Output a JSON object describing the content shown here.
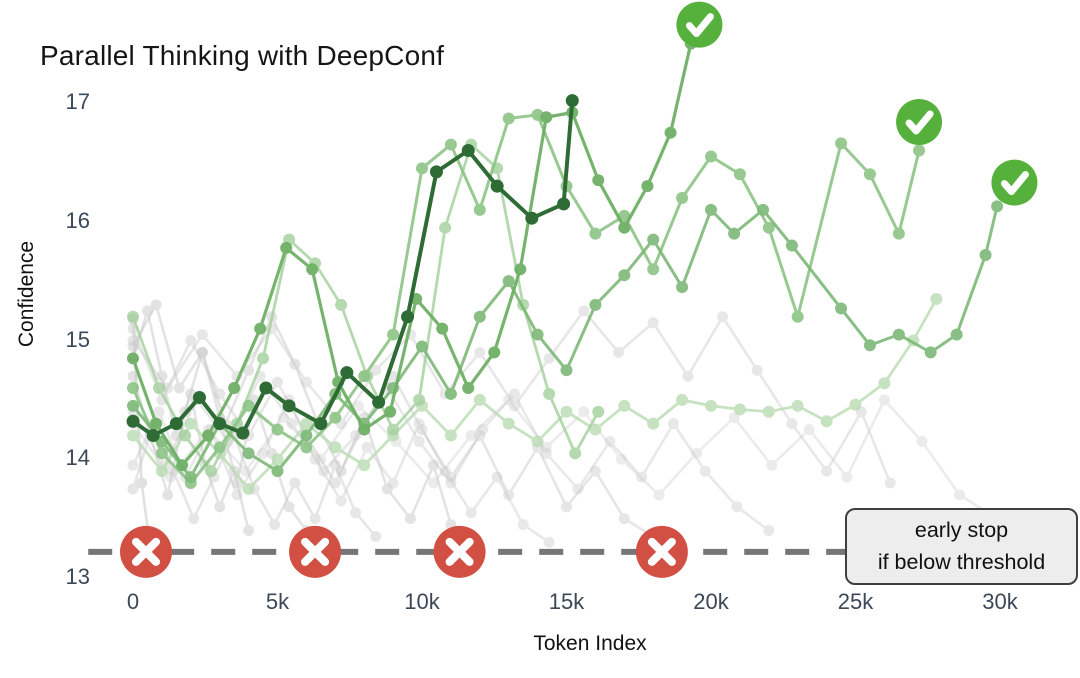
{
  "title": "Parallel Thinking with DeepConf",
  "x_axis": {
    "title": "Token Index",
    "ticks": [
      {
        "label": "0",
        "k": 0
      },
      {
        "label": "5k",
        "k": 5
      },
      {
        "label": "10k",
        "k": 10
      },
      {
        "label": "15k",
        "k": 15
      },
      {
        "label": "20k",
        "k": 20
      },
      {
        "label": "25k",
        "k": 25
      },
      {
        "label": "30k",
        "k": 30
      }
    ]
  },
  "y_axis": {
    "title": "Confidence",
    "ticks": [
      {
        "label": "17",
        "conf": 17
      },
      {
        "label": "16",
        "conf": 16
      },
      {
        "label": "15",
        "conf": 15
      },
      {
        "label": "14",
        "conf": 14
      },
      {
        "label": "13",
        "conf": 13
      }
    ]
  },
  "annotation": {
    "line1": "early stop",
    "line2": "if below threshold"
  },
  "colors": {
    "background": "#ffffff",
    "check_green": "#55b13b",
    "stop_red": "#d25043",
    "threshold_gray": "#767676",
    "tick_text": "#3c4858",
    "dark_trace_green": "#2e6b35",
    "stopped_trace_gray": "#c8c8c8"
  },
  "chart_data": {
    "type": "line",
    "title": "Parallel Thinking with DeepConf",
    "xlabel": "Token Index",
    "ylabel": "Confidence",
    "x_unit": "tokens (thousands)",
    "xlim_k": [
      0,
      31.7
    ],
    "ylim": [
      12.8,
      17.2
    ],
    "grid": false,
    "legend": "none",
    "threshold": {
      "conf": 13.22,
      "meaning": "early stop if below threshold",
      "style": "dashed",
      "color": "#767676",
      "x_span_k": [
        -1.55,
        31.7
      ]
    },
    "early_stop_markers": [
      {
        "k": 0.45,
        "conf": 13.22
      },
      {
        "k": 6.3,
        "conf": 13.22
      },
      {
        "k": 11.3,
        "conf": 13.22
      },
      {
        "k": 18.3,
        "conf": 13.22
      }
    ],
    "success_markers": [
      {
        "k": 19.6,
        "conf": 17.66
      },
      {
        "k": 27.2,
        "conf": 16.84
      },
      {
        "k": 30.5,
        "conf": 16.33
      }
    ],
    "series": [
      {
        "name": "stopped-1",
        "status": "stopped",
        "color": "#c8c8c8",
        "opacity": 0.55,
        "width": 2.6,
        "dot": 5.5,
        "k": [
          0,
          0.3,
          0.6
        ],
        "conf": [
          15.18,
          13.8,
          13.25
        ]
      },
      {
        "name": "stopped-2",
        "status": "stopped",
        "color": "#c8c8c8",
        "opacity": 0.5,
        "width": 2.6,
        "dot": 5.5,
        "k": [
          0,
          0.6,
          1.2,
          1.8,
          2.4,
          3.0,
          3.6,
          4.2,
          4.8,
          5.4,
          6.0,
          6.5
        ],
        "conf": [
          14.7,
          14.2,
          13.7,
          14.4,
          14.9,
          14.35,
          13.8,
          14.5,
          14.05,
          13.6,
          13.4,
          13.25
        ]
      },
      {
        "name": "stopped-3",
        "status": "stopped",
        "color": "#c8c8c8",
        "opacity": 0.5,
        "width": 2.6,
        "dot": 5.5,
        "k": [
          0,
          0.8,
          1.6,
          2.4,
          3.2,
          4.0,
          4.8,
          5.6,
          6.4,
          7.2,
          8.0,
          8.8,
          9.6,
          10.4,
          11.0,
          11.3
        ],
        "conf": [
          14.95,
          15.3,
          14.6,
          14.9,
          14.3,
          14.75,
          15.2,
          14.8,
          14.3,
          13.9,
          14.35,
          13.75,
          13.5,
          13.95,
          13.45,
          13.25
        ]
      },
      {
        "name": "stopped-4",
        "status": "stopped",
        "color": "#c8c8c8",
        "opacity": 0.45,
        "width": 2.6,
        "dot": 5.5,
        "k": [
          0,
          1,
          2,
          3,
          4,
          5,
          6,
          7,
          8,
          9,
          10,
          11,
          12,
          13,
          14,
          15,
          16,
          17,
          18,
          18.3
        ],
        "conf": [
          15.1,
          14.5,
          15.0,
          14.55,
          14.2,
          14.65,
          14.2,
          13.8,
          14.3,
          14.7,
          14.25,
          13.85,
          14.2,
          13.7,
          14.1,
          13.6,
          13.9,
          13.5,
          13.35,
          13.22
        ]
      },
      {
        "name": "stopped-5",
        "status": "stopped",
        "color": "#c8c8c8",
        "opacity": 0.4,
        "width": 2.6,
        "dot": 5.5,
        "k": [
          0,
          0.9,
          1.8,
          2.7,
          3.6,
          4.5,
          5.4,
          6.3,
          7.2,
          8.1,
          9.0,
          9.9,
          10.8,
          11.7,
          12.6,
          13.5,
          14.4
        ],
        "conf": [
          13.95,
          14.4,
          13.85,
          14.25,
          13.7,
          14.05,
          14.5,
          14.0,
          13.65,
          14.1,
          13.8,
          14.3,
          13.9,
          13.55,
          13.85,
          13.45,
          13.3
        ]
      },
      {
        "name": "stopped-6",
        "status": "stopped",
        "color": "#c8c8c8",
        "opacity": 0.4,
        "width": 2.6,
        "dot": 5.5,
        "k": [
          0,
          1.1,
          2.2,
          3.3,
          4.4,
          5.5,
          6.6,
          7.7,
          8.8,
          9.9,
          11,
          12.1,
          13.2,
          14.3,
          15.4,
          16.5,
          17.6,
          18.7,
          19.8,
          20.9,
          22
        ],
        "conf": [
          14.4,
          13.95,
          14.5,
          14.15,
          14.7,
          14.3,
          13.9,
          14.2,
          14.6,
          14.15,
          13.8,
          14.25,
          14.55,
          14.05,
          13.75,
          14.15,
          13.85,
          14.3,
          13.9,
          13.6,
          13.4
        ]
      },
      {
        "name": "stopped-7",
        "status": "stopped",
        "color": "#c8c8c8",
        "opacity": 0.42,
        "width": 2.6,
        "dot": 5.5,
        "k": [
          0,
          1.2,
          2.4,
          3.6,
          4.8,
          6,
          7.2,
          8.4,
          9.6,
          10.8,
          12,
          13.2,
          14.4,
          15.6,
          16.8,
          18,
          19.2,
          20.4,
          21.6,
          22.8,
          24,
          25.2,
          26.2
        ],
        "conf": [
          15.0,
          14.6,
          15.05,
          14.7,
          15.1,
          14.65,
          14.3,
          14.75,
          15.05,
          14.55,
          14.9,
          14.45,
          14.85,
          15.25,
          14.9,
          15.15,
          14.7,
          15.2,
          14.75,
          14.3,
          13.9,
          14.4,
          13.8
        ]
      },
      {
        "name": "stopped-8",
        "status": "stopped",
        "color": "#c8c8c8",
        "opacity": 0.35,
        "width": 2.6,
        "dot": 5.5,
        "k": [
          0,
          1.3,
          2.6,
          3.9,
          5.2,
          6.5,
          7.8,
          9.1,
          10.4,
          11.7,
          13,
          14.3,
          15.6,
          16.9,
          18.2,
          19.5,
          20.8,
          22.1,
          23.4,
          24.7,
          26,
          27.3,
          28.6,
          29.9,
          31
        ],
        "conf": [
          14.3,
          13.85,
          14.25,
          13.9,
          14.35,
          14.0,
          14.45,
          14.15,
          13.8,
          14.2,
          14.5,
          14.1,
          14.4,
          14.0,
          13.7,
          14.05,
          14.35,
          13.95,
          14.25,
          13.85,
          14.5,
          14.15,
          13.7,
          13.5,
          13.35
        ]
      },
      {
        "name": "stopped-9",
        "status": "stopped",
        "color": "#c8c8c8",
        "opacity": 0.5,
        "width": 2.6,
        "dot": 5.5,
        "k": [
          0,
          0.5,
          1.0,
          1.5,
          2.0,
          2.5,
          3.0,
          3.5,
          4.0
        ],
        "conf": [
          14.85,
          15.25,
          14.7,
          14.2,
          14.55,
          13.95,
          13.6,
          13.9,
          13.4
        ]
      },
      {
        "name": "stopped-10",
        "status": "stopped",
        "color": "#c8c8c8",
        "opacity": 0.45,
        "width": 2.6,
        "dot": 5.5,
        "k": [
          0,
          0.7,
          1.4,
          2.1,
          2.8,
          3.5,
          4.2,
          4.9,
          5.6,
          6.3,
          7.0,
          7.7,
          8.4
        ],
        "conf": [
          13.75,
          14.3,
          13.9,
          13.5,
          13.85,
          14.2,
          13.75,
          13.45,
          13.8,
          13.5,
          13.95,
          13.55,
          13.35
        ]
      },
      {
        "name": "kept-pale",
        "status": "kept",
        "color": "#b9dcb2",
        "opacity": 0.8,
        "width": 2.8,
        "dot": 6,
        "k": [
          0,
          1,
          2,
          3,
          4,
          5,
          6,
          7,
          8,
          9,
          10,
          11,
          12,
          13,
          14,
          15,
          16,
          17,
          18,
          19,
          20,
          21,
          22,
          23,
          24,
          25,
          26,
          27,
          27.8
        ],
        "conf": [
          14.2,
          13.9,
          14.3,
          14.05,
          13.75,
          14.0,
          14.3,
          14.1,
          13.95,
          14.2,
          14.45,
          14.2,
          14.5,
          14.3,
          14.15,
          14.4,
          14.25,
          14.45,
          14.3,
          14.5,
          14.45,
          14.42,
          14.4,
          14.45,
          14.32,
          14.46,
          14.64,
          15.0,
          15.35
        ]
      },
      {
        "name": "kept-light",
        "status": "kept",
        "color": "#a3d09b",
        "opacity": 0.8,
        "width": 2.8,
        "dot": 6,
        "k": [
          0,
          0.9,
          1.8,
          2.7,
          3.6,
          4.5,
          5.4,
          6.3,
          7.2,
          8.1,
          9.0,
          9.9,
          10.8,
          11.7,
          12.6,
          13.5,
          14.4,
          15.3,
          16.1
        ],
        "conf": [
          15.2,
          14.6,
          14.2,
          13.9,
          14.3,
          14.85,
          15.85,
          15.65,
          15.3,
          14.7,
          14.25,
          14.5,
          15.95,
          16.65,
          16.45,
          15.3,
          14.55,
          14.05,
          14.4
        ]
      },
      {
        "name": "kept-b",
        "status": "kept",
        "color": "#8cc486",
        "opacity": 0.9,
        "width": 3,
        "dot": 6,
        "k": [
          0,
          1,
          2,
          3,
          4,
          5,
          6,
          7,
          8,
          9,
          10,
          11,
          12,
          13,
          14,
          15,
          16,
          17,
          18,
          19,
          20,
          21,
          22,
          23,
          24.5,
          25.5,
          26.5,
          27.2
        ],
        "conf": [
          14.6,
          14.05,
          13.8,
          14.1,
          14.45,
          14.25,
          14.1,
          14.35,
          14.7,
          15.05,
          16.45,
          16.65,
          16.1,
          16.87,
          16.9,
          16.3,
          15.9,
          16.05,
          15.6,
          16.2,
          16.55,
          16.4,
          15.95,
          15.2,
          16.66,
          16.4,
          15.9,
          16.6
        ]
      },
      {
        "name": "kept-c",
        "status": "kept",
        "color": "#7db977",
        "opacity": 0.9,
        "width": 3,
        "dot": 6,
        "k": [
          0,
          1,
          2,
          3,
          4,
          5,
          6,
          7,
          8,
          9,
          10,
          11,
          12,
          13,
          14,
          15,
          16,
          17,
          18,
          19,
          20,
          20.8,
          21.8,
          22.8,
          24.5,
          25.5,
          26.5,
          27.6,
          28.5,
          29.5,
          29.9
        ],
        "conf": [
          14.45,
          14.15,
          13.85,
          14.3,
          14.05,
          13.9,
          14.2,
          14.55,
          14.3,
          14.6,
          14.95,
          14.55,
          15.2,
          15.5,
          15.05,
          14.75,
          15.3,
          15.55,
          15.85,
          15.45,
          16.1,
          15.9,
          16.1,
          15.8,
          15.27,
          14.96,
          15.05,
          14.9,
          15.05,
          15.72,
          16.13
        ]
      },
      {
        "name": "kept-a",
        "status": "kept",
        "color": "#6fb066",
        "opacity": 0.95,
        "width": 3.2,
        "dot": 6,
        "k": [
          0,
          0.8,
          1.7,
          2.6,
          3.5,
          4.4,
          5.3,
          6.2,
          7.1,
          8.0,
          8.9,
          9.8,
          10.7,
          11.6,
          12.5,
          13.4,
          14.3,
          15.2,
          16.1,
          17.0,
          17.8,
          18.6,
          19.3
        ],
        "conf": [
          14.85,
          14.3,
          13.95,
          14.2,
          14.6,
          15.1,
          15.78,
          15.6,
          14.65,
          14.25,
          14.4,
          15.35,
          15.1,
          14.6,
          14.9,
          15.6,
          16.88,
          16.92,
          16.35,
          15.95,
          16.3,
          16.75,
          17.5
        ]
      },
      {
        "name": "kept-dark",
        "status": "kept",
        "color": "#2e6b35",
        "opacity": 1.0,
        "width": 4,
        "dot": 6.5,
        "k": [
          0,
          0.7,
          1.5,
          2.3,
          3.0,
          3.8,
          4.6,
          5.4,
          6.5,
          7.4,
          8.5,
          9.5,
          10.5,
          11.6,
          12.6,
          13.8,
          14.9,
          15.2
        ],
        "conf": [
          14.32,
          14.2,
          14.3,
          14.52,
          14.3,
          14.22,
          14.6,
          14.45,
          14.3,
          14.73,
          14.48,
          15.2,
          16.42,
          16.6,
          16.3,
          16.03,
          16.15,
          17.02
        ]
      }
    ]
  }
}
